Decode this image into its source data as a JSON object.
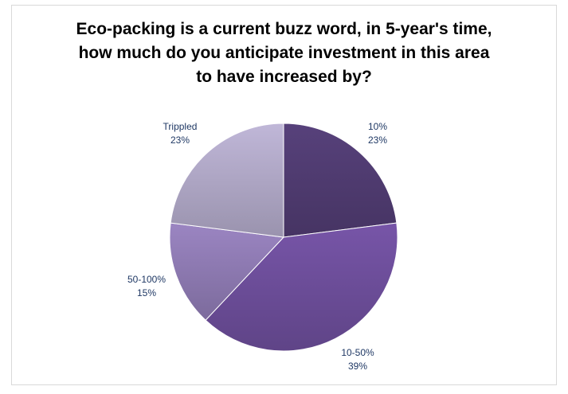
{
  "chart_data": {
    "type": "pie",
    "title_lines": [
      "Eco-packing is a current buzz word, in 5-year's time,",
      "how much do you anticipate investment in this area",
      "to have increased by?"
    ],
    "slices": [
      {
        "category": "10%",
        "percent_label": "23%",
        "value": 23,
        "color": "#4e3a6e"
      },
      {
        "category": "10-50%",
        "percent_label": "39%",
        "value": 39,
        "color": "#6a4c96"
      },
      {
        "category": "50-100%",
        "percent_label": "15%",
        "value": 15,
        "color": "#8a77ad"
      },
      {
        "category": "Trippled",
        "percent_label": "23%",
        "value": 23,
        "color": "#aba3c1"
      }
    ],
    "start_angle": "12 o'clock",
    "direction": "clockwise",
    "legend": "none"
  }
}
